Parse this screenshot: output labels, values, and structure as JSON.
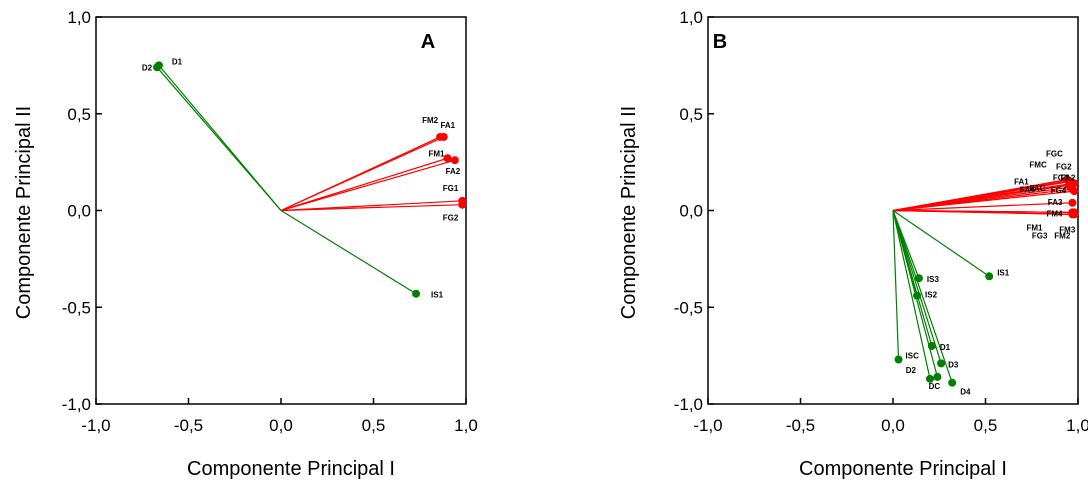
{
  "chart_data": [
    {
      "type": "scatter",
      "panel_label": "A",
      "xlabel": "Componente Principal I",
      "ylabel": "Componente Principal II",
      "xlim": [
        -1.0,
        1.0
      ],
      "ylim": [
        -1.0,
        1.0
      ],
      "x_ticks": [
        "-1,0",
        "-0,5",
        "0,0",
        "0,5",
        "1,0"
      ],
      "y_ticks": [
        "1,0",
        "0,5",
        "0,0",
        "-0,5",
        "-1,0"
      ],
      "grid": false,
      "style": "biplot vectors from origin",
      "series": [
        {
          "color": "#ff0000",
          "points": [
            {
              "label": "FM2",
              "x": 0.86,
              "y": 0.38
            },
            {
              "label": "FA1",
              "x": 0.88,
              "y": 0.38
            },
            {
              "label": "FM1",
              "x": 0.9,
              "y": 0.27
            },
            {
              "label": "FA2",
              "x": 0.94,
              "y": 0.26
            },
            {
              "label": "FG1",
              "x": 0.98,
              "y": 0.05
            },
            {
              "label": "FG2",
              "x": 0.98,
              "y": 0.03
            }
          ]
        },
        {
          "color": "#008000",
          "points": [
            {
              "label": "D2",
              "x": -0.67,
              "y": 0.74
            },
            {
              "label": "D1",
              "x": -0.66,
              "y": 0.75
            },
            {
              "label": "IS1",
              "x": 0.73,
              "y": -0.43
            }
          ]
        }
      ]
    },
    {
      "type": "scatter",
      "panel_label": "B",
      "xlabel": "Componente Principal I",
      "ylabel": "Componente Principal II",
      "xlim": [
        -1.0,
        1.0
      ],
      "ylim": [
        -1.0,
        1.0
      ],
      "x_ticks": [
        "-1,0",
        "-0,5",
        "0,0",
        "0,5",
        "1,0"
      ],
      "y_ticks": [
        "1,0",
        "0,5",
        "0,0",
        "-0,5",
        "-1,0"
      ],
      "grid": false,
      "style": "biplot vectors from origin",
      "series": [
        {
          "color": "#ff0000",
          "points": [
            {
              "label": "FGC",
              "x": 0.94,
              "y": 0.16
            },
            {
              "label": "FMC",
              "x": 0.95,
              "y": 0.155
            },
            {
              "label": "FG2",
              "x": 0.96,
              "y": 0.15
            },
            {
              "label": "FG1",
              "x": 0.97,
              "y": 0.14
            },
            {
              "label": "FA2",
              "x": 0.98,
              "y": 0.14
            },
            {
              "label": "FA1",
              "x": 0.95,
              "y": 0.13
            },
            {
              "label": "FA4",
              "x": 0.96,
              "y": 0.12
            },
            {
              "label": "FAC",
              "x": 0.97,
              "y": 0.11
            },
            {
              "label": "FG4",
              "x": 0.98,
              "y": 0.1
            },
            {
              "label": "FA3",
              "x": 0.97,
              "y": 0.04
            },
            {
              "label": "FM4",
              "x": 0.97,
              "y": -0.02
            },
            {
              "label": "FM1",
              "x": 0.97,
              "y": -0.01
            },
            {
              "label": "FM3",
              "x": 0.98,
              "y": -0.02
            },
            {
              "label": "FG3",
              "x": 0.97,
              "y": -0.01
            },
            {
              "label": "FM2",
              "x": 0.98,
              "y": -0.01
            }
          ]
        },
        {
          "color": "#008000",
          "points": [
            {
              "label": "IS1",
              "x": 0.52,
              "y": -0.34
            },
            {
              "label": "IS3",
              "x": 0.14,
              "y": -0.35
            },
            {
              "label": "IS2",
              "x": 0.13,
              "y": -0.44
            },
            {
              "label": "D1",
              "x": 0.21,
              "y": -0.7
            },
            {
              "label": "ISC",
              "x": 0.03,
              "y": -0.77
            },
            {
              "label": "D3",
              "x": 0.26,
              "y": -0.79
            },
            {
              "label": "D2",
              "x": 0.2,
              "y": -0.87
            },
            {
              "label": "DC",
              "x": 0.24,
              "y": -0.86
            },
            {
              "label": "D4",
              "x": 0.32,
              "y": -0.89
            }
          ]
        }
      ]
    }
  ]
}
